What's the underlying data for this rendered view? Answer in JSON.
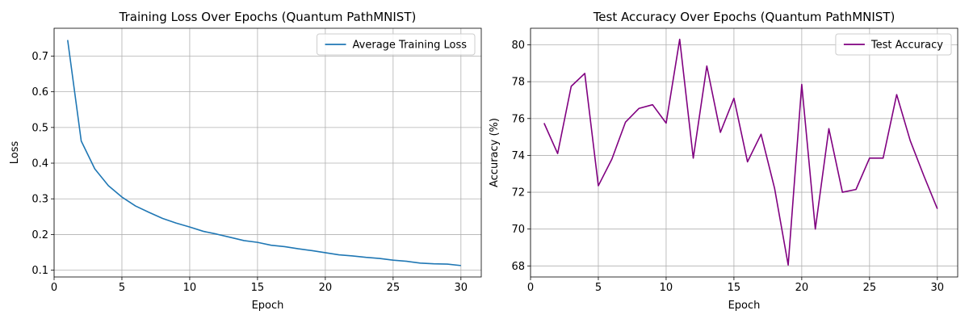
{
  "chart_data": [
    {
      "type": "line",
      "title": "Training Loss Over Epochs (Quantum PathMNIST)",
      "xlabel": "Epoch",
      "ylabel": "Loss",
      "xlim": [
        0,
        31.5
      ],
      "ylim": [
        0.081,
        0.778
      ],
      "xticks": [
        0,
        5,
        10,
        15,
        20,
        25,
        30
      ],
      "yticks": [
        0.1,
        0.2,
        0.3,
        0.4,
        0.5,
        0.6,
        0.7
      ],
      "ytick_decimals": 1,
      "grid": true,
      "legend": "top-right",
      "series": [
        {
          "name": "Average Training Loss",
          "color": "#1f77b4",
          "x": [
            1,
            2,
            3,
            4,
            5,
            6,
            7,
            8,
            9,
            10,
            11,
            12,
            13,
            14,
            15,
            16,
            17,
            18,
            19,
            20,
            21,
            22,
            23,
            24,
            25,
            26,
            27,
            28,
            29,
            30
          ],
          "y": [
            0.745,
            0.462,
            0.384,
            0.337,
            0.305,
            0.28,
            0.262,
            0.245,
            0.232,
            0.221,
            0.209,
            0.201,
            0.192,
            0.183,
            0.178,
            0.17,
            0.166,
            0.16,
            0.155,
            0.149,
            0.143,
            0.14,
            0.136,
            0.133,
            0.128,
            0.125,
            0.12,
            0.118,
            0.117,
            0.113
          ]
        }
      ]
    },
    {
      "type": "line",
      "title": "Test Accuracy Over Epochs (Quantum PathMNIST)",
      "xlabel": "Epoch",
      "ylabel": "Accuracy (%)",
      "xlim": [
        0,
        31.5
      ],
      "ylim": [
        67.4,
        80.9
      ],
      "xticks": [
        0,
        5,
        10,
        15,
        20,
        25,
        30
      ],
      "yticks": [
        68,
        70,
        72,
        74,
        76,
        78,
        80
      ],
      "ytick_decimals": 0,
      "grid": true,
      "legend": "top-right",
      "series": [
        {
          "name": "Test Accuracy",
          "color": "#800080",
          "x": [
            1,
            2,
            3,
            4,
            5,
            6,
            7,
            8,
            9,
            10,
            11,
            12,
            13,
            14,
            15,
            16,
            17,
            18,
            19,
            20,
            21,
            22,
            23,
            24,
            25,
            26,
            27,
            28,
            29,
            30
          ],
          "y": [
            75.75,
            74.1,
            77.75,
            78.45,
            72.35,
            73.8,
            75.8,
            76.55,
            76.75,
            75.75,
            80.3,
            73.85,
            78.85,
            75.25,
            77.1,
            73.65,
            75.15,
            72.2,
            68.05,
            77.85,
            70.0,
            75.45,
            72.0,
            72.15,
            73.85,
            73.85,
            77.3,
            74.8,
            72.9,
            71.1
          ]
        }
      ]
    }
  ]
}
